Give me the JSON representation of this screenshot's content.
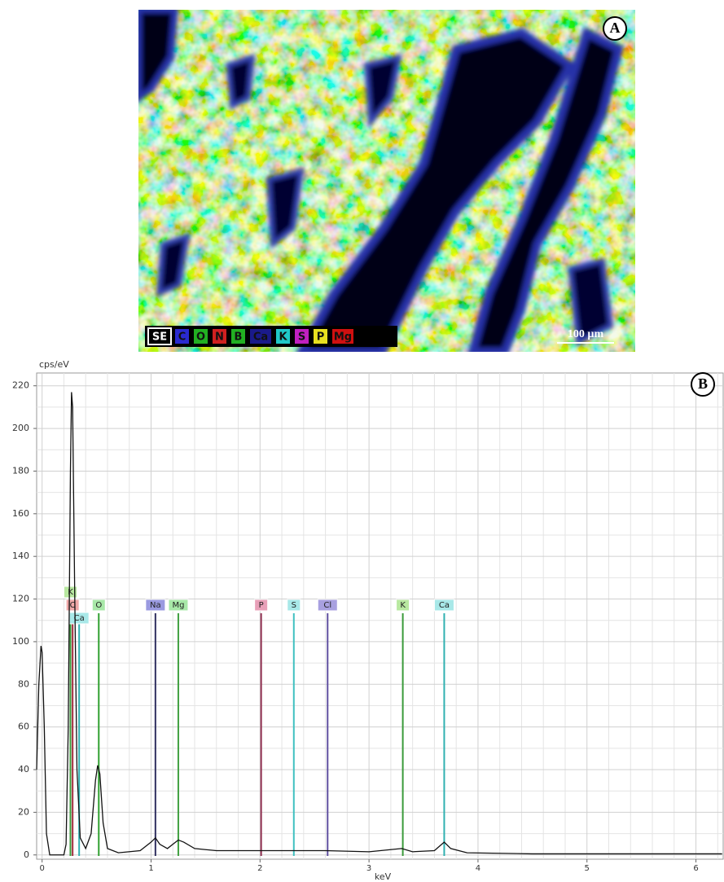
{
  "map": {
    "label": "A",
    "scale_bar": "100 µm",
    "legend": [
      {
        "text": "SE",
        "color": "#ffffff"
      },
      {
        "text": "C",
        "color": "#2a2ad0"
      },
      {
        "text": "O",
        "color": "#22b022"
      },
      {
        "text": "N",
        "color": "#d02020"
      },
      {
        "text": "B",
        "color": "#22b022"
      },
      {
        "text": "Ca",
        "color": "#1a1a8a"
      },
      {
        "text": "K",
        "color": "#20c8c8"
      },
      {
        "text": "S",
        "color": "#c020c0"
      },
      {
        "text": "P",
        "color": "#e8e020"
      },
      {
        "text": "Mg",
        "color": "#d01010"
      }
    ]
  },
  "chart_data": {
    "type": "line",
    "panel_label": "B",
    "y_label": "cps/eV",
    "x_label": "keV",
    "x": [
      -0.05,
      -0.03,
      -0.01,
      0.0,
      0.02,
      0.04,
      0.07,
      0.2,
      0.22,
      0.24,
      0.26,
      0.27,
      0.28,
      0.3,
      0.32,
      0.35,
      0.4,
      0.45,
      0.49,
      0.51,
      0.53,
      0.56,
      0.6,
      0.7,
      0.9,
      1.0,
      1.04,
      1.08,
      1.15,
      1.2,
      1.25,
      1.3,
      1.4,
      1.6,
      2.0,
      2.3,
      2.6,
      3.0,
      3.3,
      3.4,
      3.6,
      3.69,
      3.75,
      3.9,
      4.5,
      5.0,
      6.0,
      6.24
    ],
    "series": [
      {
        "color": "#111111",
        "values": [
          40,
          80,
          98,
          95,
          60,
          10,
          0,
          0,
          5,
          60,
          180,
          217,
          210,
          120,
          40,
          8,
          3,
          10,
          35,
          42,
          38,
          15,
          3,
          1,
          2,
          6,
          8,
          5,
          3,
          5,
          7,
          6,
          3,
          2,
          2,
          2,
          2,
          1.5,
          3,
          1.5,
          2,
          6,
          3,
          1,
          0.5,
          0.5,
          0.5,
          0.5
        ]
      }
    ],
    "xlim": [
      -0.05,
      6.25
    ],
    "ylim": [
      -2,
      226
    ],
    "xticks": [
      0,
      1,
      2,
      3,
      4,
      5,
      6
    ],
    "yticks": [
      0,
      20,
      40,
      60,
      80,
      100,
      120,
      140,
      160,
      180,
      200,
      220
    ],
    "grid": true,
    "peaks": [
      {
        "label": "C",
        "energy": 0.28,
        "color": "#a03040",
        "box": "#f0a8a8"
      },
      {
        "label": "K",
        "energy": 0.26,
        "color": "#3a9a3a",
        "box": "#b8e8a0"
      },
      {
        "label": "Ca",
        "energy": 0.34,
        "color": "#30b0b0",
        "box": "#a8e8e8"
      },
      {
        "label": "O",
        "energy": 0.52,
        "color": "#30a030",
        "box": "#a8e8a8"
      },
      {
        "label": "Na",
        "energy": 1.04,
        "color": "#303060",
        "box": "#9a9ae0"
      },
      {
        "label": "Mg",
        "energy": 1.25,
        "color": "#40a040",
        "box": "#a8e8a8"
      },
      {
        "label": "P",
        "energy": 2.01,
        "color": "#903050",
        "box": "#e8a0b8"
      },
      {
        "label": "S",
        "energy": 2.31,
        "color": "#40c0c0",
        "box": "#a8e8e8"
      },
      {
        "label": "Cl",
        "energy": 2.62,
        "color": "#6050a0",
        "box": "#a8a0e0"
      },
      {
        "label": "K",
        "energy": 3.31,
        "color": "#3a9a3a",
        "box": "#b8e8a0"
      },
      {
        "label": "Ca",
        "energy": 3.69,
        "color": "#30b0b0",
        "box": "#a8e8e8"
      }
    ]
  }
}
